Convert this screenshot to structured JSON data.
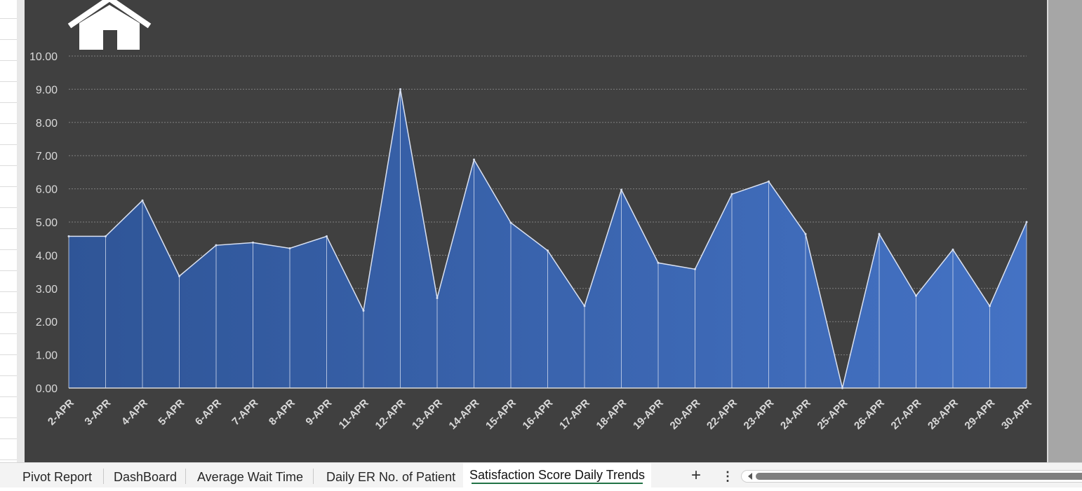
{
  "sheet_tabs": [
    {
      "label": "Pivot Report",
      "active": false
    },
    {
      "label": "DashBoard",
      "active": false
    },
    {
      "label": "Average Wait Time",
      "active": false
    },
    {
      "label": "Daily ER No. of Patient",
      "active": false
    },
    {
      "label": "Satisfaction Score Daily Trends",
      "active": true
    }
  ],
  "controls": {
    "add_sheet": "+",
    "more_options": "⋮",
    "home_icon": "home-icon"
  },
  "colors": {
    "chart_background": "#404040",
    "area_fill_start": "#2f5597",
    "area_fill_end": "#4472c4",
    "area_outline": "#d9e1f2",
    "axis_text": "#d9d9d9",
    "active_tab_underline": "#217346"
  },
  "chart_data": {
    "type": "area",
    "title": "",
    "xlabel": "",
    "ylabel": "",
    "categories": [
      "2-APR",
      "3-APR",
      "4-APR",
      "5-APR",
      "6-APR",
      "7-APR",
      "8-APR",
      "9-APR",
      "11-APR",
      "12-APR",
      "13-APR",
      "14-APR",
      "15-APR",
      "16-APR",
      "17-APR",
      "18-APR",
      "19-APR",
      "20-APR",
      "22-APR",
      "23-APR",
      "24-APR",
      "25-APR",
      "26-APR",
      "27-APR",
      "28-APR",
      "29-APR",
      "30-APR"
    ],
    "values": [
      4.57,
      4.57,
      5.65,
      3.37,
      4.3,
      4.38,
      4.21,
      4.57,
      2.33,
      9.0,
      2.71,
      6.88,
      4.98,
      4.14,
      2.47,
      5.97,
      3.77,
      3.58,
      5.84,
      6.22,
      4.64,
      0.0,
      4.64,
      2.78,
      4.17,
      2.47,
      5.0
    ],
    "ylim": [
      0,
      10
    ],
    "yticks": [
      "0.00",
      "1.00",
      "2.00",
      "3.00",
      "4.00",
      "5.00",
      "6.00",
      "7.00",
      "8.00",
      "9.00",
      "10.00"
    ],
    "grid": true,
    "legend": "none"
  }
}
